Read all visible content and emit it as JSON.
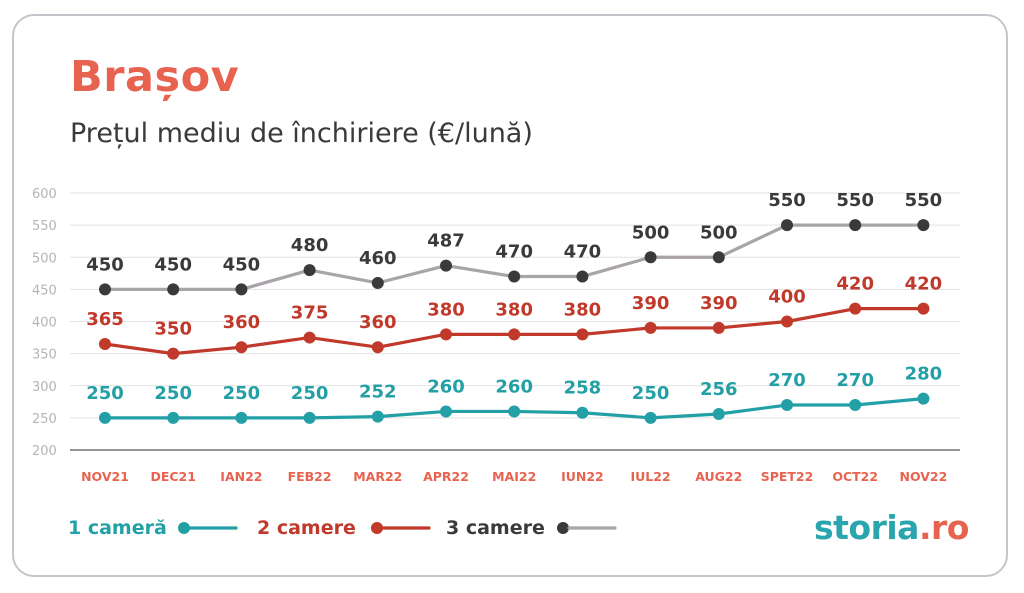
{
  "header": {
    "title": "Brașov",
    "subtitle": "Prețul mediu de închiriere (€/lună)"
  },
  "logo": {
    "part1": "storia",
    "part2": ".ro"
  },
  "colors": {
    "one_room": "#23a0a6",
    "two_rooms": "#c0392b",
    "three_rooms_line": "#a9a3aa",
    "three_rooms_point": "#3a3a3a",
    "x_labels": "#e8634f",
    "y_labels": "#b5b5b5",
    "grid": "#e2e2e2"
  },
  "chart_data": {
    "type": "line",
    "categories": [
      "NOV21",
      "DEC21",
      "IAN22",
      "FEB22",
      "MAR22",
      "APR22",
      "MAI22",
      "IUN22",
      "IUL22",
      "AUG22",
      "SPET22",
      "OCT22",
      "NOV22"
    ],
    "y_ticks": [
      200,
      250,
      300,
      350,
      400,
      450,
      500,
      550,
      600
    ],
    "ylim": [
      200,
      600
    ],
    "grid": true,
    "legend_position": "bottom-left",
    "series": [
      {
        "name": "1 cameră",
        "key": "one_room",
        "values": [
          250,
          250,
          250,
          250,
          252,
          260,
          260,
          258,
          250,
          256,
          270,
          270,
          280
        ]
      },
      {
        "name": "2 camere",
        "key": "two_rooms",
        "values": [
          365,
          350,
          360,
          375,
          360,
          380,
          380,
          380,
          390,
          390,
          400,
          420,
          420
        ]
      },
      {
        "name": "3 camere",
        "key": "three_rooms",
        "values": [
          450,
          450,
          450,
          480,
          460,
          487,
          470,
          470,
          500,
          500,
          550,
          550,
          550
        ]
      }
    ]
  }
}
